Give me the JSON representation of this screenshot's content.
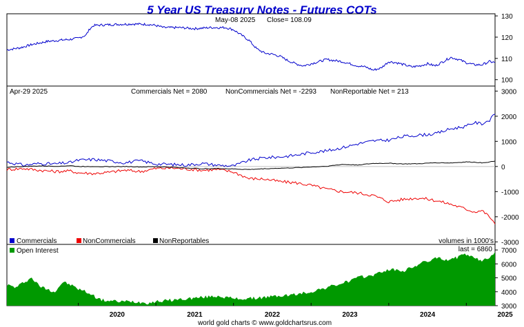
{
  "title": "5 Year US Treasury Notes - Futures COTs",
  "footer": "world gold charts © www.goldchartsrus.com",
  "colors": {
    "price": "#0000cc",
    "commercials": "#0000cc",
    "noncommercials": "#ee0000",
    "nonreportables": "#000000",
    "open_interest": "#009900",
    "zero_line": "#c0c0c0",
    "title": "#0000cc"
  },
  "x_axis": {
    "labels": [
      "2020",
      "2021",
      "2022",
      "2023",
      "2024",
      "2025"
    ],
    "range": [
      2019.08,
      2025.37
    ]
  },
  "price_panel": {
    "header_date": "May-08  2025",
    "header_close": "Close= 108.09",
    "yticks": [
      "130",
      "120",
      "110",
      "100"
    ],
    "ylim": [
      97,
      131
    ]
  },
  "net_panel": {
    "header_date": "Apr-29  2025",
    "header_commercials": "Commercials Net = 2080",
    "header_noncommercials": "NonCommercials Net = -2293",
    "header_nonreportable": "NonReportable Net = 213",
    "yticks": [
      "3000",
      "2000",
      "1000",
      "0",
      "-1000",
      "-2000",
      "-3000"
    ],
    "ylim": [
      -3100,
      3200
    ],
    "legend": [
      "Commercials",
      "NonCommercials",
      "NonReportables"
    ],
    "units_note": "volumes in 1000's"
  },
  "oi_panel": {
    "legend": "Open Interest",
    "last_label": "last = 6860",
    "yticks": [
      "7000",
      "6000",
      "5000",
      "4000",
      "3000"
    ],
    "ylim": [
      3000,
      7400
    ]
  },
  "chart_data": [
    {
      "type": "line",
      "name": "5 Year US Treasury Notes price",
      "x": [
        2019.08,
        2019.25,
        2019.4,
        2019.6,
        2019.75,
        2019.9,
        2020.0,
        2020.1,
        2020.15,
        2020.2,
        2020.3,
        2020.5,
        2020.7,
        2020.9,
        2021.0,
        2021.1,
        2021.3,
        2021.5,
        2021.7,
        2021.9,
        2022.0,
        2022.1,
        2022.2,
        2022.3,
        2022.4,
        2022.5,
        2022.6,
        2022.7,
        2022.8,
        2022.9,
        2023.0,
        2023.1,
        2023.2,
        2023.3,
        2023.4,
        2023.5,
        2023.6,
        2023.7,
        2023.8,
        2023.9,
        2024.0,
        2024.1,
        2024.2,
        2024.3,
        2024.4,
        2024.5,
        2024.6,
        2024.7,
        2024.8,
        2024.9,
        2025.0,
        2025.1,
        2025.2,
        2025.3,
        2025.37
      ],
      "values": [
        114,
        115,
        116.5,
        118,
        118.5,
        119,
        119.5,
        121,
        124,
        125.5,
        125.7,
        126,
        126.2,
        126,
        125.5,
        124.5,
        124.5,
        124,
        124.5,
        124.5,
        123.5,
        121,
        118.5,
        114.5,
        112.5,
        112,
        111,
        109,
        107.5,
        106.5,
        107.5,
        108.5,
        109.5,
        109,
        108.5,
        107.5,
        106.5,
        106,
        104.5,
        105.5,
        108.5,
        108,
        107,
        106,
        106.5,
        107.5,
        106.5,
        108.5,
        110.5,
        109.5,
        108,
        107,
        107,
        108.5,
        108.09
      ],
      "ylim": [
        97,
        131
      ],
      "ytick_labels": [
        "130",
        "120",
        "110",
        "100"
      ]
    },
    {
      "type": "line",
      "x": [
        2019.08,
        2019.3,
        2019.5,
        2019.7,
        2019.9,
        2020.0,
        2020.2,
        2020.4,
        2020.6,
        2020.8,
        2021.0,
        2021.2,
        2021.4,
        2021.6,
        2021.8,
        2022.0,
        2022.2,
        2022.4,
        2022.6,
        2022.8,
        2023.0,
        2023.2,
        2023.4,
        2023.6,
        2023.8,
        2024.0,
        2024.2,
        2024.4,
        2024.6,
        2024.8,
        2025.0,
        2025.1,
        2025.2,
        2025.3,
        2025.37
      ],
      "series": [
        {
          "name": "Commercials",
          "values": [
            180,
            50,
            120,
            100,
            160,
            250,
            280,
            220,
            150,
            230,
            100,
            80,
            60,
            120,
            50,
            20,
            250,
            350,
            380,
            450,
            560,
            620,
            750,
            900,
            1020,
            1050,
            1200,
            1250,
            1300,
            1500,
            1600,
            1750,
            1700,
            1850,
            2080
          ]
        },
        {
          "name": "NonCommercials",
          "values": [
            -120,
            -80,
            -150,
            -200,
            -180,
            -250,
            -280,
            -230,
            -150,
            -200,
            -80,
            -60,
            -100,
            -150,
            -120,
            -220,
            -480,
            -500,
            -600,
            -650,
            -750,
            -900,
            -1000,
            -1050,
            -1150,
            -1400,
            -1300,
            -1250,
            -1350,
            -1500,
            -1700,
            -1800,
            -1750,
            -2000,
            -2293
          ]
        },
        {
          "name": "NonReportables",
          "values": [
            -30,
            0,
            20,
            10,
            30,
            0,
            0,
            -10,
            0,
            -20,
            -10,
            -30,
            -60,
            -90,
            -80,
            -100,
            -120,
            -90,
            -70,
            -50,
            -20,
            10,
            80,
            60,
            120,
            130,
            100,
            110,
            150,
            140,
            180,
            170,
            150,
            180,
            213
          ]
        }
      ],
      "ylim": [
        -3100,
        3200
      ],
      "ytick_labels": [
        "3000",
        "2000",
        "1000",
        "0",
        "-1000",
        "-2000",
        "-3000"
      ]
    },
    {
      "type": "area",
      "name": "Open Interest",
      "x": [
        2019.08,
        2019.2,
        2019.3,
        2019.4,
        2019.5,
        2019.6,
        2019.7,
        2019.8,
        2019.9,
        2020.0,
        2020.1,
        2020.2,
        2020.3,
        2020.5,
        2020.7,
        2020.9,
        2021.0,
        2021.2,
        2021.4,
        2021.6,
        2021.8,
        2022.0,
        2022.2,
        2022.4,
        2022.6,
        2022.8,
        2023.0,
        2023.2,
        2023.4,
        2023.6,
        2023.8,
        2024.0,
        2024.2,
        2024.4,
        2024.6,
        2024.8,
        2025.0,
        2025.1,
        2025.2,
        2025.3,
        2025.37
      ],
      "values": [
        4500,
        4300,
        4700,
        5000,
        4400,
        4200,
        4000,
        4700,
        4500,
        4200,
        4000,
        3700,
        3400,
        3300,
        3300,
        3200,
        3300,
        3400,
        3500,
        3600,
        3700,
        3500,
        3500,
        3600,
        3700,
        3800,
        4000,
        4300,
        4600,
        5000,
        5200,
        5600,
        5500,
        6000,
        6400,
        6300,
        6700,
        6400,
        6200,
        6500,
        6860
      ],
      "ylim": [
        3000,
        7400
      ],
      "ytick_labels": [
        "7000",
        "6000",
        "5000",
        "4000",
        "3000"
      ]
    }
  ]
}
